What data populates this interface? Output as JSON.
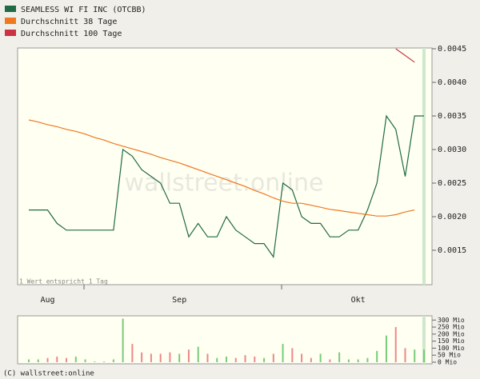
{
  "legend": [
    "SEAMLESS WI FI INC (OTCBB)",
    "Durchschnitt 38 Tage",
    "Durchschnitt 100 Tage"
  ],
  "note": "1 Wert entspricht 1 Tag",
  "watermark": "wallstreet:online",
  "footer": "(C) wallstreet:online",
  "chart_data": [
    {
      "type": "line",
      "categories": [
        null,
        null,
        "Aug",
        null,
        null,
        null,
        null,
        null,
        null,
        null,
        null,
        null,
        null,
        null,
        null,
        null,
        "Sep",
        null,
        null,
        null,
        null,
        null,
        null,
        null,
        null,
        null,
        null,
        null,
        null,
        null,
        null,
        null,
        null,
        null,
        null,
        "Okt",
        null,
        null,
        null,
        null,
        null,
        null,
        null
      ],
      "series": [
        {
          "name": "SEAMLESS WI FI INC (OTCBB)",
          "color": "#1f6b45",
          "values": [
            0.0021,
            0.0021,
            0.0021,
            0.0019,
            0.0018,
            0.0018,
            0.0018,
            0.0018,
            0.0018,
            0.0018,
            0.003,
            0.0029,
            0.0027,
            0.0026,
            0.0025,
            0.0022,
            0.0022,
            0.0017,
            0.0019,
            0.0017,
            0.0017,
            0.002,
            0.0018,
            0.0017,
            0.0016,
            0.0016,
            0.0014,
            0.0025,
            0.0024,
            0.002,
            0.0019,
            0.0019,
            0.0017,
            0.0017,
            0.0018,
            0.0018,
            0.0021,
            0.0025,
            0.0035,
            0.0033,
            0.0026,
            0.0035,
            0.0035
          ]
        },
        {
          "name": "Durchschnitt 38 Tage",
          "color": "#f07820",
          "values": [
            0.00344,
            0.00341,
            0.00337,
            0.00334,
            0.0033,
            0.00327,
            0.00323,
            0.00318,
            0.00314,
            0.00309,
            0.00305,
            0.00301,
            0.00297,
            0.00293,
            0.00288,
            0.00284,
            0.0028,
            0.00275,
            0.0027,
            0.00265,
            0.0026,
            0.00255,
            0.0025,
            0.00245,
            0.00239,
            0.00234,
            0.00228,
            0.00223,
            0.0022,
            0.0022,
            0.00217,
            0.00214,
            0.00211,
            0.00209,
            0.00207,
            0.00205,
            0.00203,
            0.00201,
            0.00201,
            0.00203,
            0.00207,
            0.0021,
            null
          ]
        },
        {
          "name": "Durchschnitt 100 Tage",
          "color": "#cc3344",
          "values": [
            null,
            null,
            null,
            null,
            null,
            null,
            null,
            null,
            null,
            null,
            null,
            null,
            null,
            null,
            null,
            null,
            null,
            null,
            null,
            null,
            null,
            null,
            null,
            null,
            null,
            null,
            null,
            null,
            null,
            null,
            null,
            null,
            null,
            null,
            null,
            null,
            null,
            null,
            null,
            0.0045,
            0.0044,
            0.0043,
            null
          ]
        }
      ],
      "ylim": [
        0.001,
        0.0045
      ],
      "yticks": [
        0.0015,
        {
          "value": 0.002,
          "label": "0.0020"
        },
        0.0025,
        {
          "value": 0.003,
          "label": "0.0030"
        },
        0.0035,
        {
          "value": 0.004,
          "label": "0.0040"
        },
        0.0045
      ]
    },
    {
      "type": "bar",
      "values": [
        20,
        20,
        30,
        40,
        30,
        40,
        20,
        5,
        5,
        20,
        310,
        130,
        70,
        60,
        60,
        70,
        60,
        90,
        110,
        60,
        30,
        40,
        30,
        50,
        40,
        30,
        60,
        130,
        100,
        60,
        30,
        60,
        20,
        70,
        20,
        20,
        30,
        80,
        190,
        250,
        100,
        90,
        90
      ],
      "colors": [
        "#7c7",
        "#7c7",
        "#e88",
        "#e88",
        "#e88",
        "#7c7",
        "#7c7",
        "#7c7",
        "#7c7",
        "#7c7",
        "#7c7",
        "#e88",
        "#e88",
        "#e88",
        "#e88",
        "#e88",
        "#7c7",
        "#e88",
        "#7c7",
        "#e88",
        "#7c7",
        "#7c7",
        "#e88",
        "#e88",
        "#e88",
        "#7c7",
        "#e88",
        "#7c7",
        "#e88",
        "#e88",
        "#e88",
        "#7c7",
        "#e88",
        "#7c7",
        "#7c7",
        "#7c7",
        "#7c7",
        "#7c7",
        "#7c7",
        "#e88",
        "#e88",
        "#7c7",
        "#7c7"
      ],
      "ylim": [
        0,
        330
      ],
      "yticks": [
        {
          "value": 0,
          "label": "0 Mio"
        },
        {
          "value": 50,
          "label": "50 Mio"
        },
        {
          "value": 100,
          "label": "100 Mio"
        },
        {
          "value": 150,
          "label": "150 Mio"
        },
        {
          "value": 200,
          "label": "200 Mio"
        },
        {
          "value": 250,
          "label": "250 Mio"
        },
        {
          "value": 300,
          "label": "300 Mio"
        }
      ]
    }
  ]
}
